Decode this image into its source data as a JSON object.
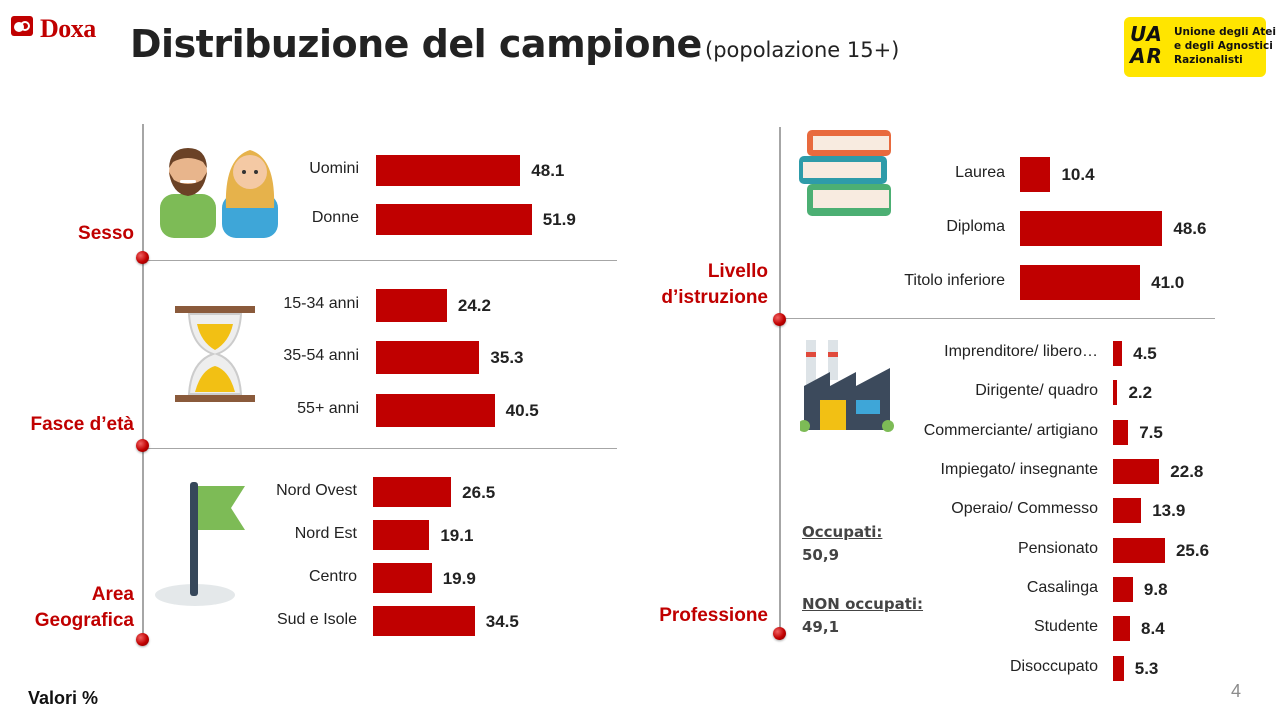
{
  "header": {
    "brand": "Doxa",
    "title": "Distribuzione del campione",
    "subtitle": "(popolazione 15+)",
    "partner_mark": "UA AR",
    "partner_lines": [
      "Unione degli Atei",
      "e degli Agnostici",
      "Razionalisti"
    ]
  },
  "footer": {
    "note": "Valori %",
    "page": "4"
  },
  "occupation_summary": {
    "employed_label": "Occupati:",
    "employed_value": "50,9",
    "unemployed_label": "NON occupati:",
    "unemployed_value": "49,1"
  },
  "colors": {
    "bar": "#c00000",
    "accent": "#c00000",
    "partner_bg": "#ffe500",
    "rule": "#a6a6a6"
  },
  "chart_data": [
    {
      "type": "bar",
      "orientation": "horizontal",
      "group": "Sesso",
      "scale_max": 100,
      "categories": [
        "Uomini",
        "Donne"
      ],
      "values": [
        48.1,
        51.9
      ],
      "icon": "people-icon"
    },
    {
      "type": "bar",
      "orientation": "horizontal",
      "group": "Fasce d’età",
      "scale_max": 100,
      "categories": [
        "15-34 anni",
        "35-54 anni",
        "55+ anni"
      ],
      "values": [
        24.2,
        35.3,
        40.5
      ],
      "icon": "hourglass-icon"
    },
    {
      "type": "bar",
      "orientation": "horizontal",
      "group": "Area Geografica",
      "scale_max": 100,
      "categories": [
        "Nord Ovest",
        "Nord Est",
        "Centro",
        "Sud e Isole"
      ],
      "values": [
        26.5,
        19.1,
        19.9,
        34.5
      ],
      "icon": "flag-icon"
    },
    {
      "type": "bar",
      "orientation": "horizontal",
      "group": "Livello d’istruzione",
      "scale_max": 100,
      "categories": [
        "Laurea",
        "Diploma",
        "Titolo inferiore"
      ],
      "values": [
        10.4,
        48.6,
        41.0
      ],
      "icon": "books-icon"
    },
    {
      "type": "bar",
      "orientation": "horizontal",
      "group": "Professione",
      "scale_max": 100,
      "categories": [
        "Imprenditore/ libero…",
        "Dirigente/ quadro",
        "Commerciante/ artigiano",
        "Impiegato/ insegnante",
        "Operaio/ Commesso",
        "Pensionato",
        "Casalinga",
        "Studente",
        "Disoccupato"
      ],
      "values": [
        4.5,
        2.2,
        7.5,
        22.8,
        13.9,
        25.6,
        9.8,
        8.4,
        5.3
      ],
      "icon": "factory-icon"
    }
  ]
}
